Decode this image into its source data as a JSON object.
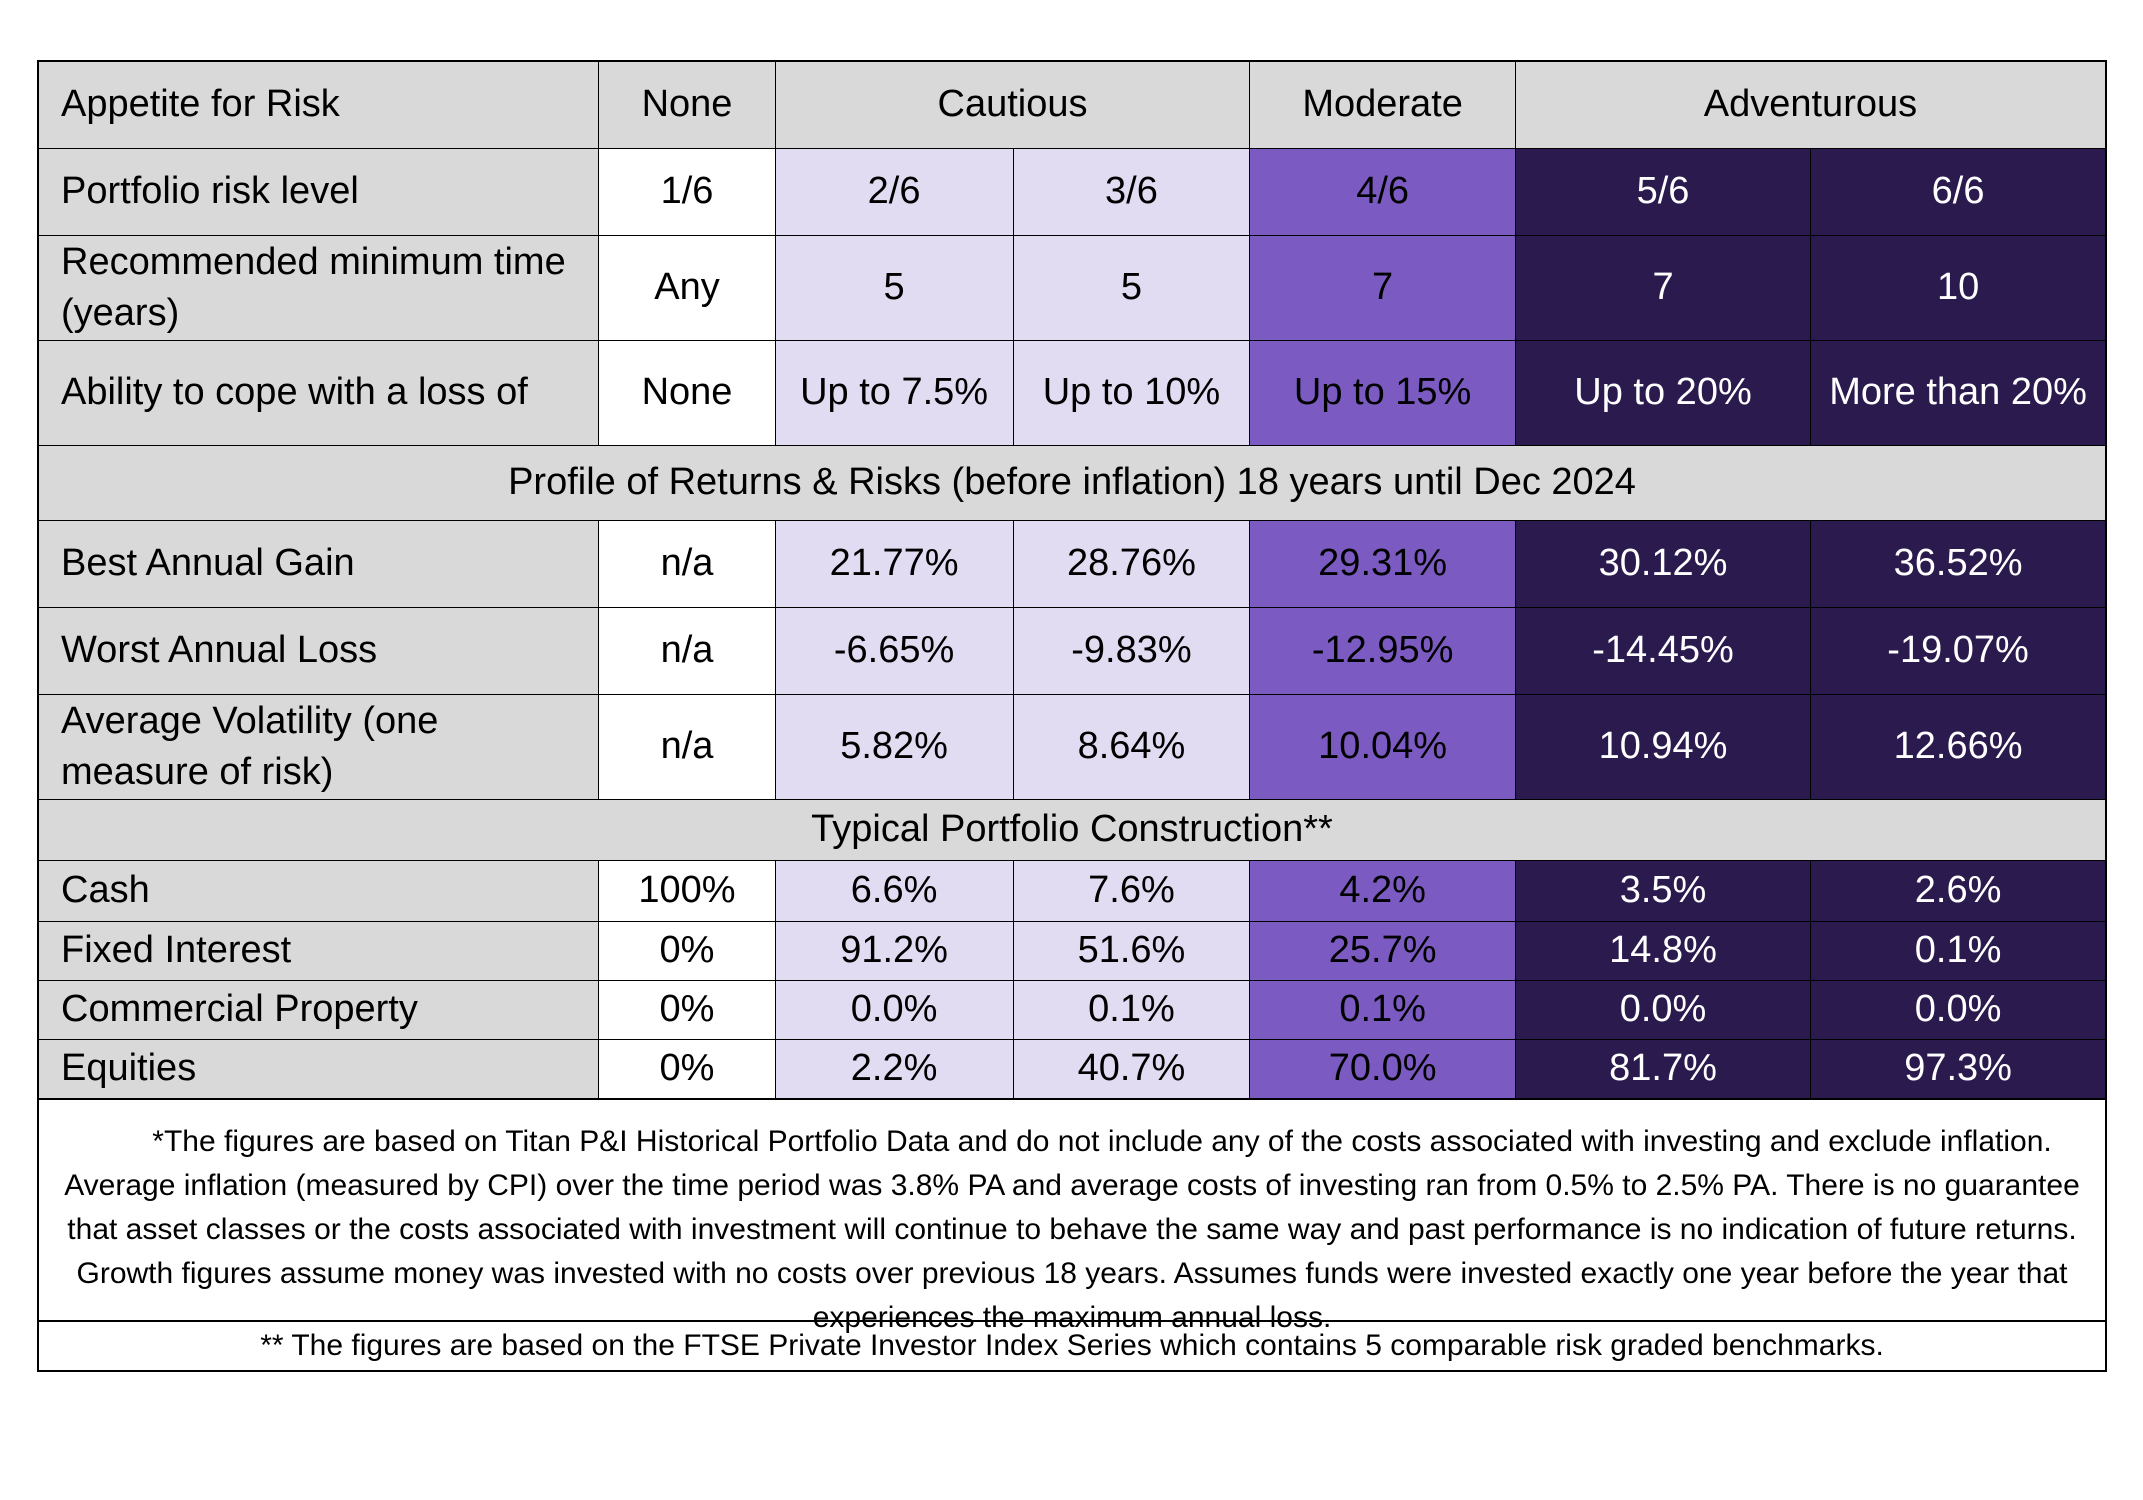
{
  "header": {
    "label": "Appetite for Risk",
    "groups": [
      "None",
      "Cautious",
      "Moderate",
      "Adventurous"
    ]
  },
  "rows_top": [
    {
      "label": "Portfolio risk level",
      "values": [
        "1/6",
        "2/6",
        "3/6",
        "4/6",
        "5/6",
        "6/6"
      ]
    },
    {
      "label": "Recommended minimum time (years)",
      "values": [
        "Any",
        "5",
        "5",
        "7",
        "7",
        "10"
      ]
    },
    {
      "label": "Ability to cope with a loss of",
      "values": [
        "None",
        "Up to 7.5%",
        "Up to 10%",
        "Up to 15%",
        "Up to 20%",
        "More than 20%"
      ]
    }
  ],
  "section_returns": "Profile of Returns & Risks (before inflation) 18 years until Dec 2024",
  "rows_returns": [
    {
      "label": "Best Annual Gain",
      "values": [
        "n/a",
        "21.77%",
        "28.76%",
        "29.31%",
        "30.12%",
        "36.52%"
      ]
    },
    {
      "label": "Worst Annual Loss",
      "values": [
        "n/a",
        "-6.65%",
        "-9.83%",
        "-12.95%",
        "-14.45%",
        "-19.07%"
      ]
    },
    {
      "label": "Average Volatility (one measure of risk)",
      "values": [
        "n/a",
        "5.82%",
        "8.64%",
        "10.04%",
        "10.94%",
        "12.66%"
      ]
    }
  ],
  "section_construction": "Typical Portfolio Construction**",
  "rows_construction": [
    {
      "label": "Cash",
      "values": [
        "100%",
        "6.6%",
        "7.6%",
        "4.2%",
        "3.5%",
        "2.6%"
      ]
    },
    {
      "label": "Fixed Interest",
      "values": [
        "0%",
        "91.2%",
        "51.6%",
        "25.7%",
        "14.8%",
        "0.1%"
      ]
    },
    {
      "label": "Commercial Property",
      "values": [
        "0%",
        "0.0%",
        "0.1%",
        "0.1%",
        "0.0%",
        "0.0%"
      ]
    },
    {
      "label": "Equities",
      "values": [
        "0%",
        "2.2%",
        "40.7%",
        "70.0%",
        "81.7%",
        "97.3%"
      ]
    }
  ],
  "notes": {
    "footnote_1": "*The figures are based on Titan P&I Historical Portfolio Data and do not include any of the costs associated with investing and exclude inflation. Average inflation (measured by CPI) over the time period was 3.8% PA and average costs of investing ran from 0.5% to 2.5% PA. There is no guarantee that asset classes or the costs associated with investment will continue to behave the same way and past performance is no indication of future returns. Growth figures assume money was invested with no costs over previous 18 years. Assumes funds were invested exactly one year before the year that experiences the maximum annual loss.",
    "footnote_2": "** The figures are based on the FTSE Private Investor Index Series which contains 5 comparable risk graded benchmarks."
  },
  "colors": {
    "header_grey": "#d9d9d9",
    "none_white": "#ffffff",
    "cautious_light": "#e2dcf2",
    "moderate_mid": "#7b5bc1",
    "adventurous_dark": "#2a1a4e"
  }
}
